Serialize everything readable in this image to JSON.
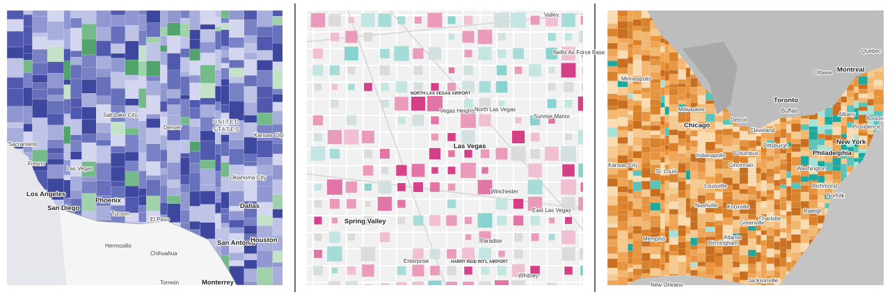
{
  "panels": [
    {
      "labels": [
        "UNITED",
        "STATES",
        "Salt Lake City",
        "Denver",
        "Sacramento",
        "Fresno",
        "Las Vegas",
        "Los Angeles",
        "San Diego",
        "Phoenix",
        "Tucson",
        "El Paso",
        "Oklahoma City",
        "Kansas City",
        "Dallas",
        "San Antonio",
        "Houston",
        "Hermosillo",
        "Chihuahua",
        "Monterrey",
        "Torreón"
      ]
    },
    {
      "labels": [
        "Valley",
        "Nellis Air Force Base",
        "NORTH LAS VEGAS AIRPORT",
        "Vegas Heights",
        "North Las Vegas",
        "Sunrise Manor",
        "Las Vegas",
        "Winchester",
        "East Las Vegas",
        "Spring Valley",
        "Paradise",
        "HARRY REID INT'L AIRPORT",
        "Enterprise",
        "Whitney"
      ]
    },
    {
      "labels": [
        "Quebec",
        "Ottawa",
        "Montreal",
        "Toronto",
        "Minneapolis",
        "Milwaukee",
        "Detroit",
        "Chicago",
        "Cleveland",
        "Buffalo",
        "Albany",
        "Boston",
        "Providence",
        "New York",
        "Philadelphia",
        "Pittsburgh",
        "Columbus",
        "Indianapolis",
        "Cincinnati",
        "Kansas City",
        "St. Louis",
        "Louisville",
        "Washington",
        "Richmond",
        "Norfolk",
        "Nashville",
        "Knoxville",
        "Raleigh",
        "Charlotte",
        "Greenville",
        "Memphis",
        "Atlanta",
        "Birmingham",
        "New Orleans",
        "Jacksonville"
      ]
    }
  ]
}
